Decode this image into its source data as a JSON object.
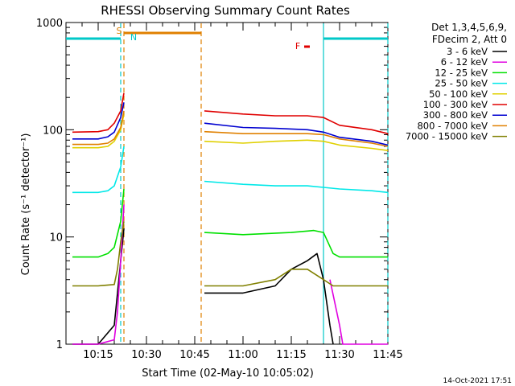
{
  "chart_data": {
    "type": "line",
    "title": "RHESSI Observing Summary Count Rates",
    "xlabel": "Start Time (02-May-10 10:05:02)",
    "ylabel": "Count Rate (s⁻¹ detector⁻¹)",
    "ylim": [
      1,
      1000
    ],
    "yscale": "log",
    "xlim": [
      "10:05",
      "11:45"
    ],
    "x_ticks": [
      "10:15",
      "10:30",
      "10:45",
      "11:00",
      "11:15",
      "11:30",
      "11:45"
    ],
    "y_ticks": [
      "1",
      "10",
      "100",
      "1000"
    ],
    "legend_header": [
      "Det 1,3,4,5,6,9,",
      "FDecim 2, Att 0"
    ],
    "legend_position": "right",
    "timestamp": "14-Oct-2021 17:51",
    "annotations": {
      "S": {
        "label": "S",
        "time": "10:23",
        "color": "#e08000"
      },
      "N": {
        "label": "N",
        "time": "10:25",
        "color": "#00c8c8"
      },
      "F": {
        "label": "F",
        "time": "11:20",
        "color": "#e00000"
      }
    },
    "bars": {
      "saa_time": [
        "10:23",
        "10:47"
      ],
      "night_times": [
        [
          "10:05",
          "10:22"
        ],
        [
          "11:25",
          "11:45"
        ]
      ]
    },
    "vlines": [
      {
        "time": "10:22",
        "color": "#00c8c8",
        "style": "dashed"
      },
      {
        "time": "10:23",
        "color": "#e08000",
        "style": "dashed"
      },
      {
        "time": "10:47",
        "color": "#e08000",
        "style": "dashed"
      },
      {
        "time": "11:25",
        "color": "#00c8c8",
        "style": "solid"
      },
      {
        "time": "11:45",
        "color": "#00c8c8",
        "style": "dashed"
      }
    ],
    "series": [
      {
        "name": "3 - 6 keV",
        "color": "#000000",
        "x": [
          "10:07",
          "10:15",
          "10:20",
          "10:21",
          "10:22",
          "10:23",
          "10:48",
          "11:00",
          "11:10",
          "11:15",
          "11:20",
          "11:23",
          "11:25",
          "11:27",
          "11:28"
        ],
        "values": [
          1,
          1,
          1.5,
          3,
          6,
          12,
          3,
          3,
          3.5,
          5,
          6,
          7,
          4,
          1.5,
          1
        ]
      },
      {
        "name": "6 - 12 keV",
        "color": "#e000e0",
        "x": [
          "10:07",
          "10:15",
          "10:20",
          "10:21",
          "10:22",
          "10:23",
          "11:27",
          "11:30",
          "11:31",
          "11:40",
          "11:45"
        ],
        "values": [
          1,
          1,
          1.1,
          2,
          6,
          20,
          4,
          1.5,
          1,
          1,
          1
        ]
      },
      {
        "name": "12 - 25 keV",
        "color": "#00e000",
        "x": [
          "10:07",
          "10:15",
          "10:18",
          "10:20",
          "10:22",
          "10:23",
          "10:48",
          "11:00",
          "11:15",
          "11:22",
          "11:25",
          "11:28",
          "11:30",
          "11:40",
          "11:45"
        ],
        "values": [
          6.5,
          6.5,
          7,
          8,
          14,
          28,
          11,
          10.5,
          11,
          11.5,
          11,
          7,
          6.5,
          6.5,
          6.5
        ]
      },
      {
        "name": "25 - 50 keV",
        "color": "#00e8e8",
        "x": [
          "10:07",
          "10:15",
          "10:18",
          "10:20",
          "10:22",
          "10:23",
          "10:48",
          "11:00",
          "11:10",
          "11:20",
          "11:25",
          "11:30",
          "11:40",
          "11:45"
        ],
        "values": [
          26,
          26,
          27,
          30,
          45,
          70,
          33,
          31,
          30,
          30,
          29,
          28,
          27,
          26
        ]
      },
      {
        "name": "50 - 100 keV",
        "color": "#e0d000",
        "x": [
          "10:07",
          "10:15",
          "10:18",
          "10:20",
          "10:22",
          "10:23",
          "10:48",
          "11:00",
          "11:10",
          "11:20",
          "11:25",
          "11:30",
          "11:40",
          "11:45"
        ],
        "values": [
          68,
          68,
          70,
          78,
          100,
          140,
          78,
          75,
          78,
          80,
          78,
          72,
          67,
          64
        ]
      },
      {
        "name": "100 - 300 keV",
        "color": "#e00000",
        "x": [
          "10:07",
          "10:15",
          "10:18",
          "10:20",
          "10:22",
          "10:23",
          "10:48",
          "11:00",
          "11:10",
          "11:20",
          "11:25",
          "11:30",
          "11:40",
          "11:45"
        ],
        "values": [
          95,
          96,
          100,
          115,
          150,
          220,
          150,
          140,
          135,
          135,
          130,
          110,
          100,
          92
        ]
      },
      {
        "name": "300 - 800 keV",
        "color": "#0000d0",
        "x": [
          "10:07",
          "10:15",
          "10:18",
          "10:20",
          "10:22",
          "10:23",
          "10:48",
          "11:00",
          "11:10",
          "11:20",
          "11:25",
          "11:30",
          "11:40",
          "11:45"
        ],
        "values": [
          82,
          82,
          86,
          95,
          130,
          180,
          115,
          105,
          103,
          100,
          95,
          85,
          78,
          72
        ]
      },
      {
        "name": "800 - 7000 keV",
        "color": "#e08000",
        "x": [
          "10:07",
          "10:15",
          "10:18",
          "10:20",
          "10:22",
          "10:23",
          "10:48",
          "11:00",
          "11:10",
          "11:20",
          "11:25",
          "11:30",
          "11:40",
          "11:45"
        ],
        "values": [
          73,
          73,
          75,
          82,
          105,
          150,
          96,
          92,
          92,
          92,
          90,
          82,
          75,
          70
        ]
      },
      {
        "name": "7000 - 15000 keV",
        "color": "#808000",
        "x": [
          "10:07",
          "10:15",
          "10:20",
          "10:21",
          "10:22",
          "10:23",
          "10:48",
          "11:00",
          "11:10",
          "11:15",
          "11:20",
          "11:25",
          "11:28",
          "11:30",
          "11:40",
          "11:45"
        ],
        "values": [
          3.5,
          3.5,
          3.6,
          5,
          9,
          14,
          3.5,
          3.5,
          4,
          5,
          5,
          4,
          3.5,
          3.5,
          3.5,
          3.5
        ]
      }
    ]
  }
}
